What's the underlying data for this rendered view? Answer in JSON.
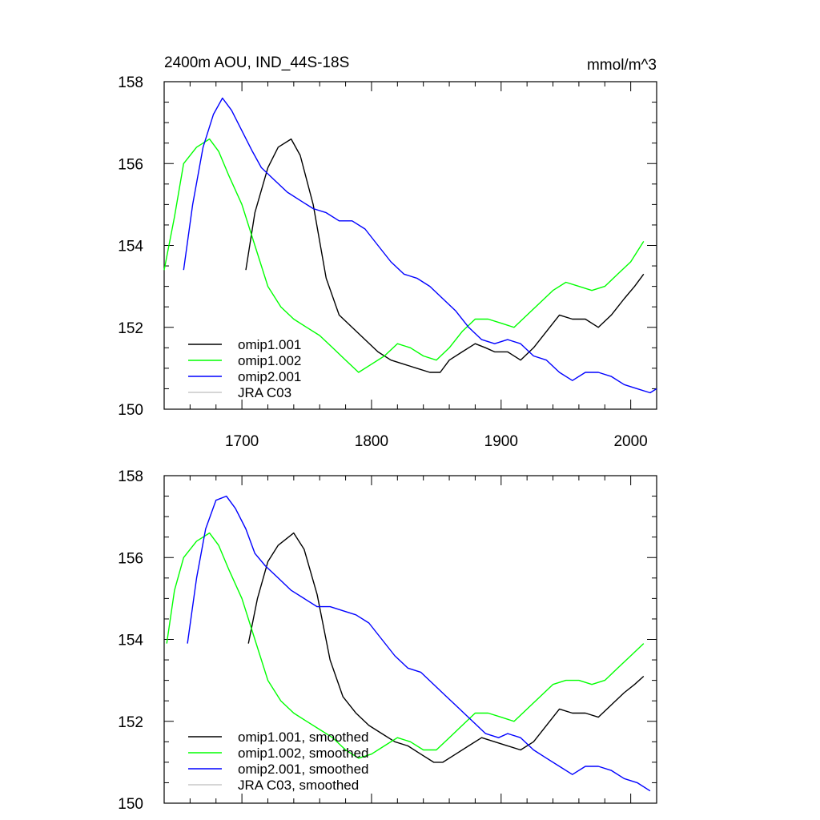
{
  "chart_data": [
    {
      "type": "line",
      "title": "2400m AOU, IND_44S-18S",
      "units": "mmol/m^3",
      "xlim": [
        1640,
        2020
      ],
      "ylim": [
        150,
        158
      ],
      "xticks": [
        1700,
        1800,
        1900,
        2000
      ],
      "yticks": [
        150,
        152,
        154,
        156,
        158
      ],
      "show_x_tick_labels": true,
      "legend_position": "bottom-left",
      "series": [
        {
          "name": "omip1.001",
          "color": "#000000",
          "x": [
            1703,
            1710,
            1720,
            1728,
            1738,
            1745,
            1755,
            1765,
            1775,
            1785,
            1795,
            1805,
            1815,
            1825,
            1835,
            1845,
            1853,
            1860,
            1870,
            1880,
            1888,
            1895,
            1905,
            1915,
            1925,
            1935,
            1945,
            1955,
            1965,
            1975,
            1985,
            1995,
            2003,
            2010
          ],
          "y": [
            153.4,
            154.8,
            155.9,
            156.4,
            156.6,
            156.2,
            155.0,
            153.2,
            152.3,
            152.0,
            151.7,
            151.4,
            151.2,
            151.1,
            151.0,
            150.9,
            150.9,
            151.2,
            151.4,
            151.6,
            151.5,
            151.4,
            151.4,
            151.2,
            151.5,
            151.9,
            152.3,
            152.2,
            152.2,
            152.0,
            152.3,
            152.7,
            153.0,
            153.3
          ]
        },
        {
          "name": "omip1.002",
          "color": "#00ff00",
          "x": [
            1640,
            1648,
            1655,
            1665,
            1675,
            1682,
            1690,
            1700,
            1710,
            1720,
            1730,
            1740,
            1750,
            1760,
            1770,
            1780,
            1790,
            1800,
            1810,
            1820,
            1830,
            1840,
            1850,
            1860,
            1870,
            1880,
            1890,
            1900,
            1910,
            1920,
            1930,
            1940,
            1950,
            1960,
            1970,
            1980,
            1990,
            2000,
            2010
          ],
          "y": [
            153.4,
            154.7,
            156.0,
            156.4,
            156.6,
            156.3,
            155.7,
            155.0,
            154.0,
            153.0,
            152.5,
            152.2,
            152.0,
            151.8,
            151.5,
            151.2,
            150.9,
            151.1,
            151.3,
            151.6,
            151.5,
            151.3,
            151.2,
            151.5,
            151.9,
            152.2,
            152.2,
            152.1,
            152.0,
            152.3,
            152.6,
            152.9,
            153.1,
            153.0,
            152.9,
            153.0,
            153.3,
            153.6,
            154.1
          ]
        },
        {
          "name": "omip2.001",
          "color": "#0000ff",
          "x": [
            1655,
            1662,
            1670,
            1678,
            1685,
            1692,
            1700,
            1708,
            1715,
            1725,
            1735,
            1745,
            1755,
            1765,
            1775,
            1785,
            1795,
            1805,
            1815,
            1825,
            1835,
            1845,
            1855,
            1865,
            1875,
            1885,
            1895,
            1905,
            1915,
            1925,
            1935,
            1945,
            1955,
            1965,
            1975,
            1985,
            1995,
            2005,
            2015,
            2020
          ],
          "y": [
            153.4,
            155.0,
            156.4,
            157.2,
            157.6,
            157.3,
            156.8,
            156.3,
            155.9,
            155.6,
            155.3,
            155.1,
            154.9,
            154.8,
            154.6,
            154.6,
            154.4,
            154.0,
            153.6,
            153.3,
            153.2,
            153.0,
            152.7,
            152.4,
            152.0,
            151.7,
            151.6,
            151.7,
            151.6,
            151.3,
            151.2,
            150.9,
            150.7,
            150.9,
            150.9,
            150.8,
            150.6,
            150.5,
            150.4,
            150.5
          ]
        },
        {
          "name": "JRA C03",
          "color": "#c8c8c8",
          "x": [],
          "y": []
        }
      ]
    },
    {
      "type": "line",
      "title": "",
      "units": "",
      "xlim": [
        1640,
        2020
      ],
      "ylim": [
        150,
        158
      ],
      "xticks": [
        1700,
        1800,
        1900,
        2000
      ],
      "yticks": [
        150,
        152,
        154,
        156,
        158
      ],
      "show_x_tick_labels": false,
      "legend_position": "bottom-left",
      "series": [
        {
          "name": "omip1.001, smoothed",
          "color": "#000000",
          "x": [
            1705,
            1712,
            1720,
            1728,
            1740,
            1748,
            1758,
            1768,
            1778,
            1788,
            1798,
            1808,
            1818,
            1828,
            1838,
            1848,
            1855,
            1865,
            1875,
            1885,
            1895,
            1905,
            1915,
            1925,
            1935,
            1945,
            1955,
            1965,
            1975,
            1985,
            1995,
            2003,
            2010
          ],
          "y": [
            153.9,
            155.0,
            155.9,
            156.3,
            156.6,
            156.2,
            155.1,
            153.5,
            152.6,
            152.2,
            151.9,
            151.7,
            151.5,
            151.4,
            151.2,
            151.0,
            151.0,
            151.2,
            151.4,
            151.6,
            151.5,
            151.4,
            151.3,
            151.5,
            151.9,
            152.3,
            152.2,
            152.2,
            152.1,
            152.4,
            152.7,
            152.9,
            153.1
          ]
        },
        {
          "name": "omip1.002, smoothed",
          "color": "#00ff00",
          "x": [
            1642,
            1648,
            1655,
            1665,
            1675,
            1682,
            1690,
            1700,
            1710,
            1720,
            1730,
            1740,
            1750,
            1760,
            1770,
            1780,
            1790,
            1800,
            1810,
            1820,
            1830,
            1840,
            1850,
            1860,
            1870,
            1880,
            1890,
            1900,
            1910,
            1920,
            1930,
            1940,
            1950,
            1960,
            1970,
            1980,
            1990,
            2000,
            2010
          ],
          "y": [
            153.9,
            155.2,
            156.0,
            156.4,
            156.6,
            156.3,
            155.7,
            155.0,
            154.0,
            153.0,
            152.5,
            152.2,
            152.0,
            151.8,
            151.6,
            151.3,
            151.1,
            151.2,
            151.4,
            151.6,
            151.5,
            151.3,
            151.3,
            151.6,
            151.9,
            152.2,
            152.2,
            152.1,
            152.0,
            152.3,
            152.6,
            152.9,
            153.0,
            153.0,
            152.9,
            153.0,
            153.3,
            153.6,
            153.9
          ]
        },
        {
          "name": "omip2.001, smoothed",
          "color": "#0000ff",
          "x": [
            1658,
            1665,
            1672,
            1680,
            1688,
            1695,
            1703,
            1710,
            1718,
            1728,
            1738,
            1748,
            1758,
            1768,
            1778,
            1788,
            1798,
            1808,
            1818,
            1828,
            1838,
            1848,
            1858,
            1868,
            1878,
            1888,
            1898,
            1905,
            1915,
            1925,
            1935,
            1945,
            1955,
            1965,
            1975,
            1985,
            1995,
            2005,
            2015
          ],
          "y": [
            153.9,
            155.5,
            156.7,
            157.4,
            157.5,
            157.2,
            156.7,
            156.1,
            155.8,
            155.5,
            155.2,
            155.0,
            154.8,
            154.8,
            154.7,
            154.6,
            154.4,
            154.0,
            153.6,
            153.3,
            153.2,
            152.9,
            152.6,
            152.3,
            152.0,
            151.7,
            151.6,
            151.7,
            151.6,
            151.3,
            151.1,
            150.9,
            150.7,
            150.9,
            150.9,
            150.8,
            150.6,
            150.5,
            150.3
          ]
        },
        {
          "name": "JRA C03, smoothed",
          "color": "#c8c8c8",
          "x": [],
          "y": []
        }
      ]
    }
  ]
}
